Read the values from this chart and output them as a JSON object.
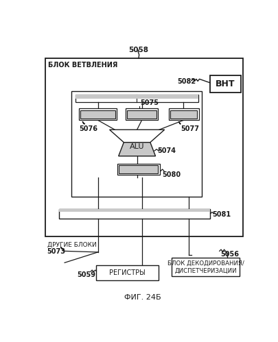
{
  "fig_width": 4.06,
  "fig_height": 4.99,
  "dpi": 100,
  "bg_color": "#ffffff",
  "caption": "ФИГ. 24Б",
  "label_5058": "5058",
  "label_branch": "БЛОК ВЕТВЛЕНИЯ",
  "label_5082": "5082",
  "label_vnt": "ВНТ",
  "label_5075": "5075",
  "label_5076": "5076",
  "label_5077": "5077",
  "label_alu": "ALU",
  "label_5074": "5074",
  "label_5080": "5080",
  "label_5081": "5081",
  "label_5073": "5073",
  "label_other": "ДРУГИЕ БЛОКИ",
  "label_5059": "5059",
  "label_regs": "РЕГИСТРЫ",
  "label_5056": "5056",
  "label_decode": "БЛОК ДЕКОДИРОВАНИЯ/\nДИСПЕТЧЕРИЗАЦИИ"
}
